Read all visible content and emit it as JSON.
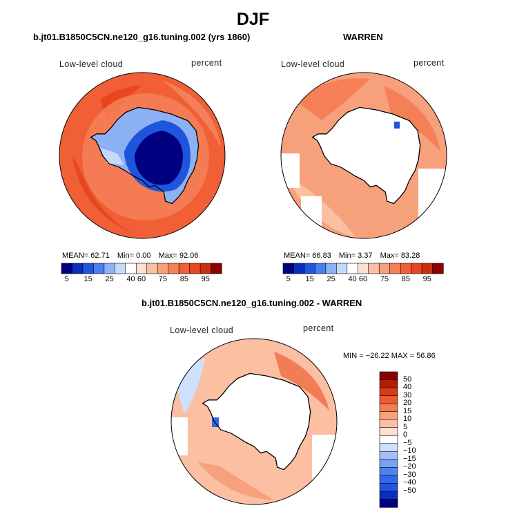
{
  "figure": {
    "title": "DJF"
  },
  "colors": {
    "abs_scale": [
      "#000080",
      "#0a2dbf",
      "#1f55dd",
      "#4a7ef0",
      "#8cb1f5",
      "#c4dafb",
      "#ffffff",
      "#fde0d0",
      "#fbbfa2",
      "#f7a07c",
      "#f58058",
      "#f05f36",
      "#e8471e",
      "#c9300f",
      "#8b0000"
    ],
    "diff_scale": [
      "#000080",
      "#0a2dbf",
      "#1f55dd",
      "#2f68e8",
      "#4d83f0",
      "#7aa2f4",
      "#a3c0f8",
      "#cfe0fc",
      "#ffffff",
      "#fde0d0",
      "#fbbfa2",
      "#f7a07c",
      "#f27c54",
      "#ec5a2e",
      "#d93b10",
      "#b11d05",
      "#8b0000"
    ],
    "land": "#ffffff",
    "coast": "#000000"
  },
  "panels": {
    "model": {
      "title": "b.jt01.B1850C5CN.ne120_g16.tuning.002 (yrs 1860)",
      "variable": "Low-level cloud",
      "units": "percent",
      "stats": {
        "mean_label": "MEAN=",
        "mean": "62.71",
        "min_label": "Min=",
        "min": "0.00",
        "max_label": "Max=",
        "max": "92.06"
      }
    },
    "obs": {
      "title": "WARREN",
      "variable": "Low-level cloud",
      "units": "percent",
      "stats": {
        "mean_label": "MEAN=",
        "mean": "66.83",
        "min_label": "Min=",
        "min": "3.37",
        "max_label": "Max=",
        "max": "83.28"
      }
    },
    "diff": {
      "title": "b.jt01.B1850C5CN.ne120_g16.tuning.002 - WARREN",
      "variable": "Low-level cloud",
      "units": "percent",
      "stats": "MIN = −26.22 MAX =  56.86"
    }
  },
  "chart_data": [
    {
      "type": "heatmap",
      "projection": "south polar stereographic",
      "title": "b.jt01.B1850C5CN.ne120_g16.tuning.002 (yrs 1860)",
      "variable": "Low-level cloud",
      "units": "percent",
      "mean": 62.71,
      "min": 0.0,
      "max": 92.06,
      "colorbar_ticks": [
        "5",
        "15",
        "25",
        "40",
        "60",
        "75",
        "85",
        "95"
      ]
    },
    {
      "type": "heatmap",
      "projection": "south polar stereographic",
      "title": "WARREN",
      "variable": "Low-level cloud",
      "units": "percent",
      "mean": 66.83,
      "min": 3.37,
      "max": 83.28,
      "colorbar_ticks": [
        "5",
        "15",
        "25",
        "40",
        "60",
        "75",
        "85",
        "95"
      ]
    },
    {
      "type": "heatmap",
      "projection": "south polar stereographic",
      "title": "b.jt01.B1850C5CN.ne120_g16.tuning.002 - WARREN",
      "variable": "Low-level cloud",
      "units": "percent",
      "min": -26.22,
      "max": 56.86,
      "colorbar_ticks": [
        "50",
        "40",
        "30",
        "20",
        "15",
        "10",
        "5",
        "0",
        "−5",
        "−10",
        "−15",
        "−20",
        "−30",
        "−40",
        "−50"
      ]
    }
  ]
}
